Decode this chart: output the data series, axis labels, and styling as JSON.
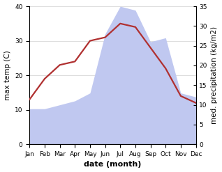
{
  "months": [
    "Jan",
    "Feb",
    "Mar",
    "Apr",
    "May",
    "Jun",
    "Jul",
    "Aug",
    "Sep",
    "Oct",
    "Nov",
    "Dec"
  ],
  "temperature": [
    13,
    19,
    23,
    24,
    30,
    31,
    35,
    34,
    28,
    22,
    14,
    12
  ],
  "precipitation": [
    9,
    9,
    10,
    11,
    13,
    28,
    35,
    34,
    26,
    27,
    13,
    12
  ],
  "temp_color": "#b03030",
  "precip_color": "#c0c8f0",
  "temp_ylim": [
    0,
    40
  ],
  "precip_ylim": [
    0,
    35
  ],
  "xlabel": "date (month)",
  "ylabel_left": "max temp (C)",
  "ylabel_right": "med. precipitation (kg/m2)",
  "bg_color": "#ffffff",
  "grid_color": "#d0d0d0",
  "temp_linewidth": 1.6,
  "label_fontsize": 7.5,
  "tick_fontsize": 6.5
}
